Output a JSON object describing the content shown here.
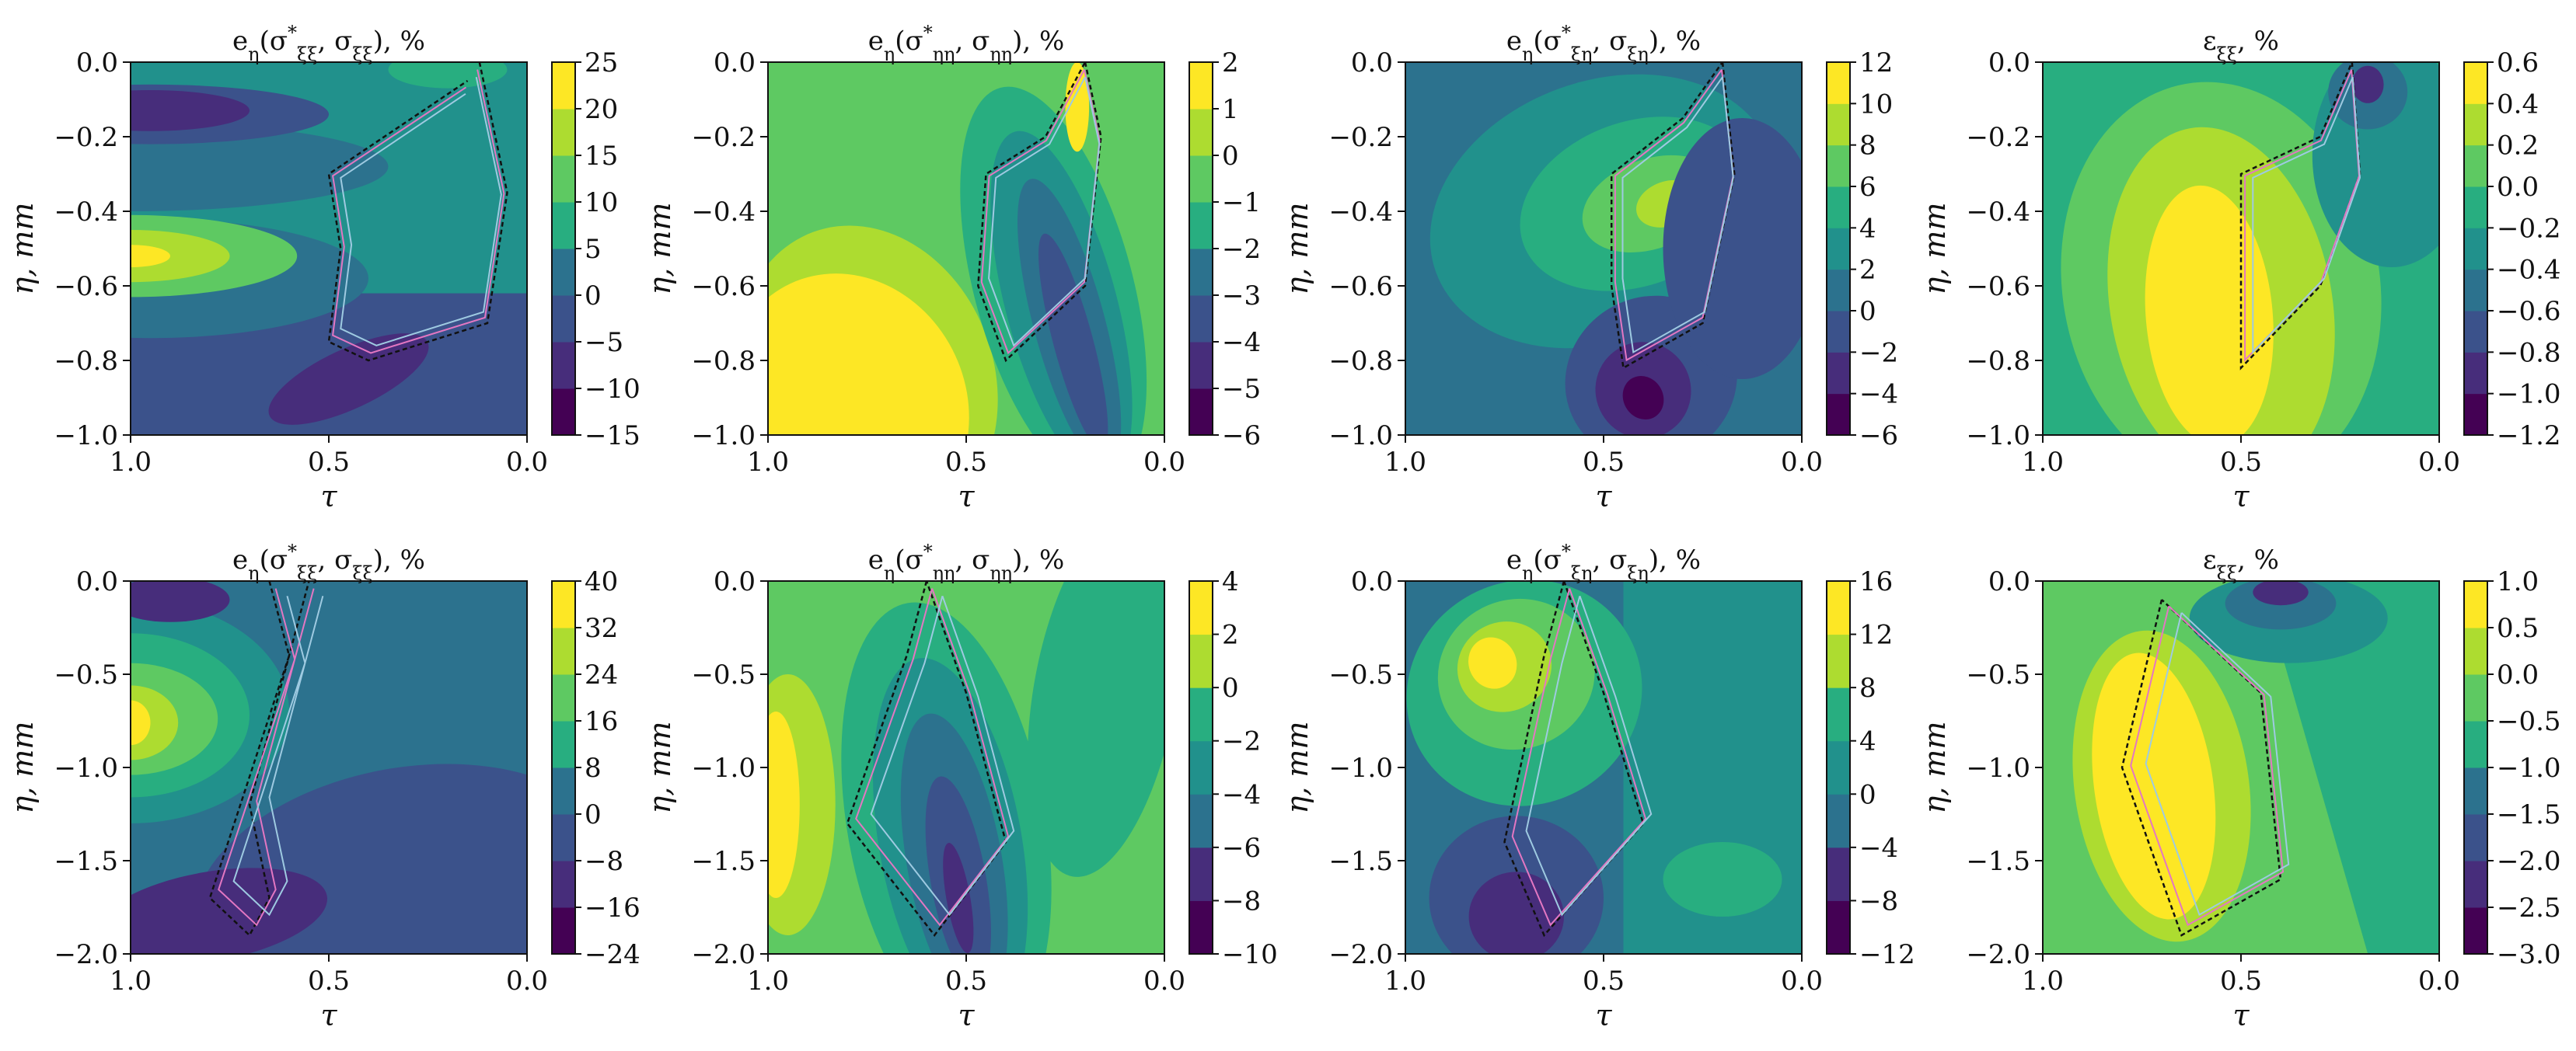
{
  "chart_data": [
    {
      "type": "heatmap",
      "panel": "row1-col1",
      "title": "e_η(σ*_ξξ, σ_ξξ), %",
      "xlabel": "τ",
      "ylabel": "η, mm",
      "xlim": [
        1.0,
        0.0
      ],
      "ylim": [
        -1.0,
        0.0
      ],
      "x_ticks": [
        "1.0",
        "0.5",
        "0.0"
      ],
      "y_ticks": [
        "−1.0",
        "−0.8",
        "−0.6",
        "−0.4",
        "−0.2",
        "0.0"
      ],
      "colorbar_ticks": [
        "−15",
        "−10",
        "−5",
        "0",
        "5",
        "10",
        "15",
        "20",
        "25"
      ],
      "colorbar_range": [
        -15,
        25
      ]
    },
    {
      "type": "heatmap",
      "panel": "row1-col2",
      "title": "e_η(σ*_ηη, σ_ηη), %",
      "xlabel": "τ",
      "ylabel": "η, mm",
      "xlim": [
        1.0,
        0.0
      ],
      "ylim": [
        -1.0,
        0.0
      ],
      "x_ticks": [
        "1.0",
        "0.5",
        "0.0"
      ],
      "y_ticks": [
        "−1.0",
        "−0.8",
        "−0.6",
        "−0.4",
        "−0.2",
        "0.0"
      ],
      "colorbar_ticks": [
        "−6",
        "−5",
        "−4",
        "−3",
        "−2",
        "−1",
        "0",
        "1",
        "2"
      ],
      "colorbar_range": [
        -6,
        2
      ]
    },
    {
      "type": "heatmap",
      "panel": "row1-col3",
      "title": "e_η(σ*_ξη, σ_ξη), %",
      "xlabel": "τ",
      "ylabel": "η, mm",
      "xlim": [
        1.0,
        0.0
      ],
      "ylim": [
        -1.0,
        0.0
      ],
      "x_ticks": [
        "1.0",
        "0.5",
        "0.0"
      ],
      "y_ticks": [
        "−1.0",
        "−0.8",
        "−0.6",
        "−0.4",
        "−0.2",
        "0.0"
      ],
      "colorbar_ticks": [
        "−6",
        "−4",
        "−2",
        "0",
        "2",
        "4",
        "6",
        "8",
        "10",
        "12"
      ],
      "colorbar_range": [
        -6,
        12
      ]
    },
    {
      "type": "heatmap",
      "panel": "row1-col4",
      "title": "ε_ξξ, %",
      "xlabel": "τ",
      "ylabel": "η, mm",
      "xlim": [
        1.0,
        0.0
      ],
      "ylim": [
        -1.0,
        0.0
      ],
      "x_ticks": [
        "1.0",
        "0.5",
        "0.0"
      ],
      "y_ticks": [
        "−1.0",
        "−0.8",
        "−0.6",
        "−0.4",
        "−0.2",
        "0.0"
      ],
      "colorbar_ticks": [
        "−1.2",
        "−1.0",
        "−0.8",
        "−0.6",
        "−0.4",
        "−0.2",
        "0.0",
        "0.2",
        "0.4",
        "0.6"
      ],
      "colorbar_range": [
        -1.2,
        0.6
      ]
    },
    {
      "type": "heatmap",
      "panel": "row2-col1",
      "title": "e_η(σ*_ξξ, σ_ξξ), %",
      "xlabel": "τ",
      "ylabel": "η, mm",
      "xlim": [
        1.0,
        0.0
      ],
      "ylim": [
        -2.0,
        0.0
      ],
      "x_ticks": [
        "1.0",
        "0.5",
        "0.0"
      ],
      "y_ticks": [
        "−2.0",
        "−1.5",
        "−1.0",
        "−0.5",
        "0.0"
      ],
      "colorbar_ticks": [
        "−24",
        "−16",
        "−8",
        "0",
        "8",
        "16",
        "24",
        "32",
        "40"
      ],
      "colorbar_range": [
        -24,
        40
      ]
    },
    {
      "type": "heatmap",
      "panel": "row2-col2",
      "title": "e_η(σ*_ηη, σ_ηη), %",
      "xlabel": "τ",
      "ylabel": "η, mm",
      "xlim": [
        1.0,
        0.0
      ],
      "ylim": [
        -2.0,
        0.0
      ],
      "x_ticks": [
        "1.0",
        "0.5",
        "0.0"
      ],
      "y_ticks": [
        "−2.0",
        "−1.5",
        "−1.0",
        "−0.5",
        "0.0"
      ],
      "colorbar_ticks": [
        "−10",
        "−8",
        "−6",
        "−4",
        "−2",
        "0",
        "2",
        "4"
      ],
      "colorbar_range": [
        -10,
        4
      ]
    },
    {
      "type": "heatmap",
      "panel": "row2-col3",
      "title": "e_η(σ*_ξη, σ_ξη), %",
      "xlabel": "τ",
      "ylabel": "η, mm",
      "xlim": [
        1.0,
        0.0
      ],
      "ylim": [
        -2.0,
        0.0
      ],
      "x_ticks": [
        "1.0",
        "0.5",
        "0.0"
      ],
      "y_ticks": [
        "−2.0",
        "−1.5",
        "−1.0",
        "−0.5",
        "0.0"
      ],
      "colorbar_ticks": [
        "−12",
        "−8",
        "−4",
        "0",
        "4",
        "8",
        "12",
        "16"
      ],
      "colorbar_range": [
        -12,
        16
      ]
    },
    {
      "type": "heatmap",
      "panel": "row2-col4",
      "title": "ε_ξξ, %",
      "xlabel": "τ",
      "ylabel": "η, mm",
      "xlim": [
        1.0,
        0.0
      ],
      "ylim": [
        -2.0,
        0.0
      ],
      "x_ticks": [
        "1.0",
        "0.5",
        "0.0"
      ],
      "y_ticks": [
        "−2.0",
        "−1.5",
        "−1.0",
        "−0.5",
        "0.0"
      ],
      "colorbar_ticks": [
        "−3.0",
        "−2.5",
        "−2.0",
        "−1.5",
        "−1.0",
        "−0.5",
        "0.0",
        "0.5",
        "1.0"
      ],
      "colorbar_range": [
        -3.0,
        1.0
      ]
    }
  ],
  "colors": {
    "colormap": "viridis",
    "viridis": [
      "#440154",
      "#472d7b",
      "#3b528b",
      "#2c728e",
      "#21918c",
      "#28ae80",
      "#5ec962",
      "#addc30",
      "#fde725"
    ],
    "dashed_contour": "#111111",
    "pink_contour": "#e377c2",
    "light_blue_contour": "#9ecae1"
  }
}
